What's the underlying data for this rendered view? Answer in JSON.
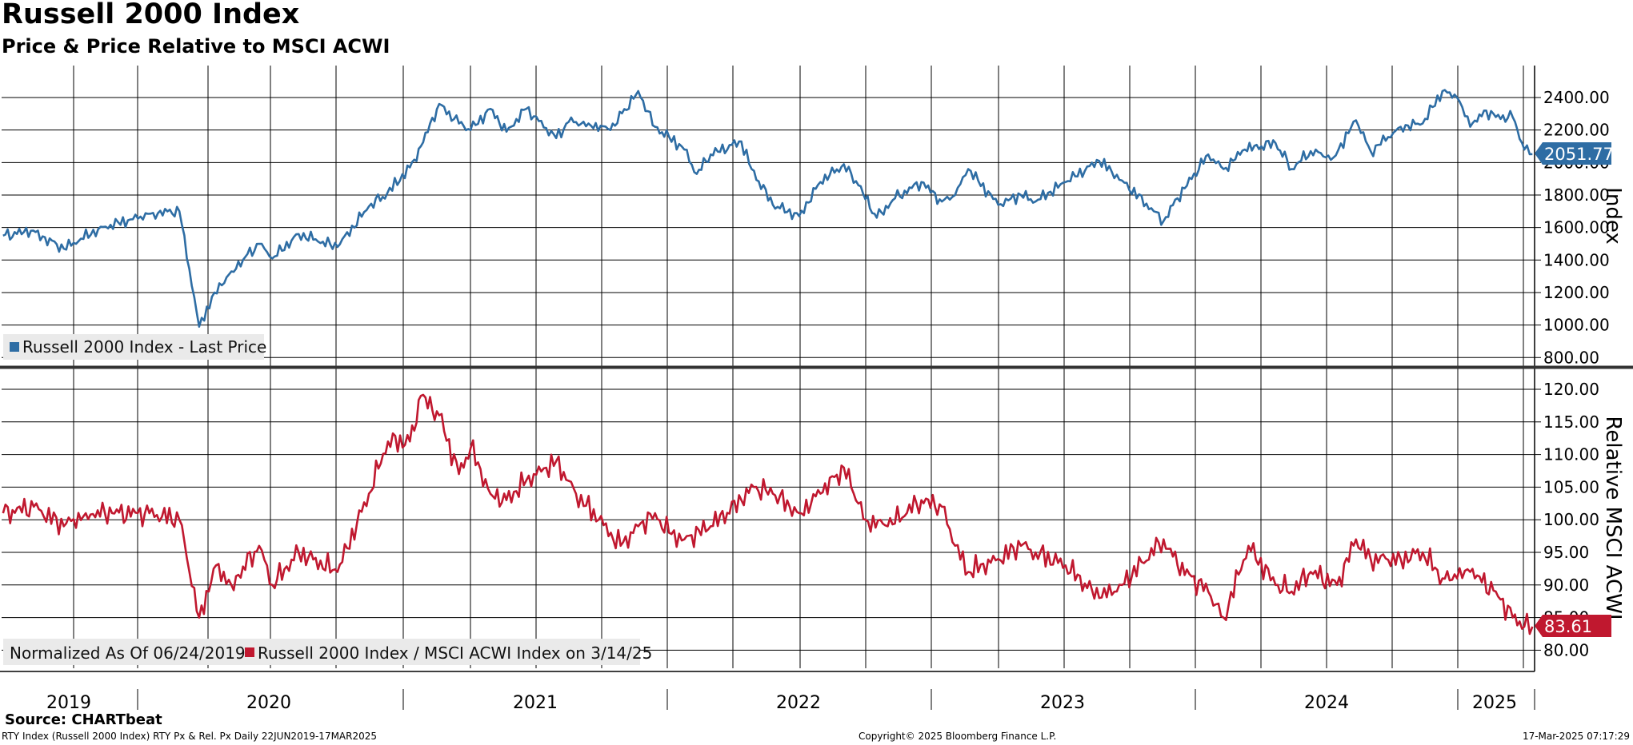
{
  "header": {
    "title": "Russell 2000 Index",
    "subtitle": "Price & Price Relative to MSCI ACWI"
  },
  "footer": {
    "source": "Source: CHARTbeat",
    "left": "RTY Index (Russell 2000 Index) RTY Px & Rel. Px  Daily 22JUN2019-17MAR2025",
    "center": "Copyright© 2025 Bloomberg Finance L.P.",
    "right": "17-Mar-2025 07:17:29"
  },
  "colors": {
    "price": "#2e6da4",
    "relative": "#c0182f",
    "grid": "#000000"
  },
  "chart_data": [
    {
      "type": "line",
      "ylabel": "Index",
      "ylim": [
        700,
        2550
      ],
      "yticks": [
        "2400.00",
        "2200.00",
        "2000.00",
        "1800.00",
        "1600.00",
        "1400.00",
        "1200.00",
        "1000.00",
        "800.00"
      ],
      "legend": "Russell 2000 Index - Last Price",
      "last_value_label": "2051.77",
      "series": [
        {
          "name": "Russell 2000 Index - Last Price",
          "x": [
            "2019-06-24",
            "2019-08-01",
            "2019-09-15",
            "2019-11-01",
            "2019-12-15",
            "2020-01-15",
            "2020-02-20",
            "2020-03-18",
            "2020-04-08",
            "2020-05-01",
            "2020-06-08",
            "2020-06-26",
            "2020-08-01",
            "2020-09-23",
            "2020-11-05",
            "2020-11-30",
            "2020-12-31",
            "2021-01-15",
            "2021-02-09",
            "2021-03-08",
            "2021-03-24",
            "2021-04-20",
            "2021-05-12",
            "2021-06-08",
            "2021-07-19",
            "2021-08-05",
            "2021-09-01",
            "2021-10-01",
            "2021-11-08",
            "2021-12-01",
            "2021-12-20",
            "2022-01-10",
            "2022-01-27",
            "2022-02-15",
            "2022-03-29",
            "2022-04-12",
            "2022-05-11",
            "2022-06-16",
            "2022-07-15",
            "2022-08-16",
            "2022-09-05",
            "2022-09-30",
            "2022-10-25",
            "2022-11-30",
            "2022-12-28",
            "2023-01-15",
            "2023-02-02",
            "2023-03-15",
            "2023-04-15",
            "2023-05-05",
            "2023-06-15",
            "2023-07-31",
            "2023-08-31",
            "2023-10-27",
            "2023-11-15",
            "2023-12-27",
            "2024-01-17",
            "2024-02-15",
            "2024-03-28",
            "2024-04-19",
            "2024-05-15",
            "2024-06-15",
            "2024-07-16",
            "2024-08-05",
            "2024-09-15",
            "2024-10-15",
            "2024-11-11",
            "2024-12-01",
            "2024-12-19",
            "2025-01-10",
            "2025-01-23",
            "2025-02-15",
            "2025-03-03",
            "2025-03-14"
          ],
          "values": [
            1550,
            1580,
            1470,
            1590,
            1650,
            1690,
            1700,
            990,
            1200,
            1330,
            1500,
            1410,
            1560,
            1480,
            1730,
            1810,
            1970,
            2100,
            2360,
            2240,
            2200,
            2330,
            2190,
            2330,
            2150,
            2250,
            2240,
            2200,
            2440,
            2220,
            2160,
            2080,
            1930,
            2050,
            2130,
            1960,
            1740,
            1670,
            1880,
            1990,
            1860,
            1660,
            1780,
            1880,
            1760,
            1800,
            1960,
            1740,
            1800,
            1760,
            1880,
            2010,
            1890,
            1640,
            1780,
            2050,
            1960,
            2080,
            2120,
            1960,
            2070,
            2030,
            2260,
            2070,
            2220,
            2240,
            2440,
            2400,
            2220,
            2320,
            2280,
            2280,
            2080,
            2051.77
          ]
        }
      ]
    },
    {
      "type": "line",
      "ylabel": "Relative MSCI ACWI",
      "ylim": [
        76,
        122
      ],
      "yticks": [
        "120.00",
        "115.00",
        "110.00",
        "105.00",
        "100.00",
        "95.00",
        "90.00",
        "85.00",
        "80.00"
      ],
      "legend": "Normalized As Of 06/24/2019",
      "series_legend": "Russell 2000 Index / MSCI ACWI Index on 3/14/25",
      "last_value_label": "83.61",
      "series": [
        {
          "name": "Russell 2000 Index / MSCI ACWI Index on 3/14/25",
          "x": [
            "2019-06-24",
            "2019-08-05",
            "2019-09-15",
            "2019-10-15",
            "2019-11-20",
            "2020-01-10",
            "2020-02-20",
            "2020-03-18",
            "2020-04-10",
            "2020-05-01",
            "2020-06-08",
            "2020-06-26",
            "2020-08-01",
            "2020-09-23",
            "2020-11-05",
            "2020-12-01",
            "2020-12-31",
            "2021-01-15",
            "2021-02-09",
            "2021-03-08",
            "2021-03-24",
            "2021-04-20",
            "2021-05-12",
            "2021-06-08",
            "2021-07-19",
            "2021-08-15",
            "2021-09-15",
            "2021-10-15",
            "2021-11-08",
            "2021-12-01",
            "2021-12-20",
            "2022-01-10",
            "2022-02-15",
            "2022-03-29",
            "2022-04-15",
            "2022-05-11",
            "2022-06-16",
            "2022-07-15",
            "2022-08-16",
            "2022-09-15",
            "2022-10-15",
            "2022-11-30",
            "2022-12-28",
            "2023-01-15",
            "2023-02-02",
            "2023-03-15",
            "2023-04-15",
            "2023-05-05",
            "2023-06-15",
            "2023-07-31",
            "2023-08-31",
            "2023-10-27",
            "2023-11-15",
            "2023-12-27",
            "2024-01-17",
            "2024-02-20",
            "2024-03-28",
            "2024-04-19",
            "2024-05-15",
            "2024-06-20",
            "2024-07-16",
            "2024-08-05",
            "2024-09-15",
            "2024-10-15",
            "2024-11-11",
            "2024-12-01",
            "2024-12-19",
            "2025-01-23",
            "2025-02-15",
            "2025-03-03",
            "2025-03-14"
          ],
          "values": [
            101,
            102,
            99,
            101,
            101,
            101,
            100,
            85,
            93,
            90,
            96,
            90,
            95,
            92,
            104,
            112,
            112,
            119,
            116,
            107,
            111,
            104,
            103,
            106,
            109,
            104,
            100,
            96,
            99,
            101,
            98,
            97,
            99,
            103,
            105,
            104,
            101,
            104,
            108,
            100,
            99,
            103,
            102,
            96,
            92,
            94,
            96,
            95,
            93,
            88,
            90,
            97,
            93,
            89,
            85,
            96,
            90,
            89,
            92,
            90,
            97,
            94,
            94,
            95,
            91,
            91,
            92,
            89,
            85,
            83.61,
            83.61
          ]
        }
      ]
    }
  ],
  "x_axis": {
    "years": [
      "2019",
      "2020",
      "2021",
      "2022",
      "2023",
      "2024",
      "2025"
    ]
  }
}
